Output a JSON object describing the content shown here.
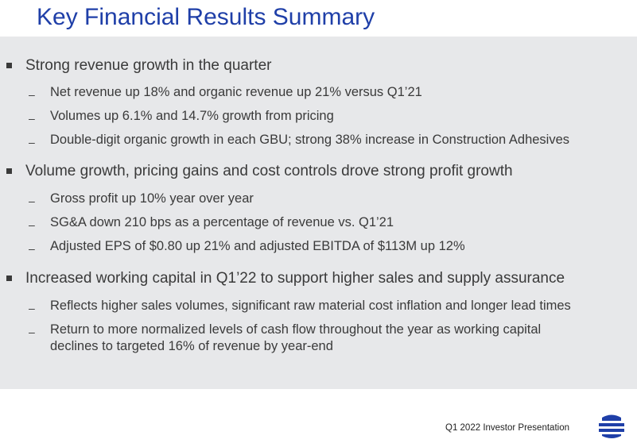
{
  "title": "Key Financial Results Summary",
  "sections": [
    {
      "heading": "Strong revenue growth in the quarter",
      "items": [
        "Net revenue up 18% and organic revenue up 21% versus Q1’21",
        "Volumes up 6.1% and 14.7% growth from pricing",
        "Double-digit organic growth in each GBU; strong 38% increase in Construction Adhesives"
      ]
    },
    {
      "heading": "Volume growth, pricing gains and cost controls drove strong profit growth",
      "items": [
        "Gross profit up 10% year over year",
        "SG&A down 210 bps as a percentage of revenue vs. Q1’21",
        "Adjusted EPS of $0.80 up 21% and adjusted EBITDA of $113M up 12%"
      ]
    },
    {
      "heading": "Increased working capital in Q1’22 to support higher sales and supply assurance",
      "items": [
        "Reflects higher sales volumes, significant raw material cost inflation and longer lead times",
        "Return to more normalized levels of cash flow throughout the year as working capital",
        "declines to targeted 16% of revenue by year-end"
      ]
    }
  ],
  "footer": {
    "label": "Q1 2022 Investor Presentation"
  },
  "colors": {
    "title": "#1f3fa8",
    "panel": "#e7e8ea",
    "logo": "#1f3fa8"
  }
}
